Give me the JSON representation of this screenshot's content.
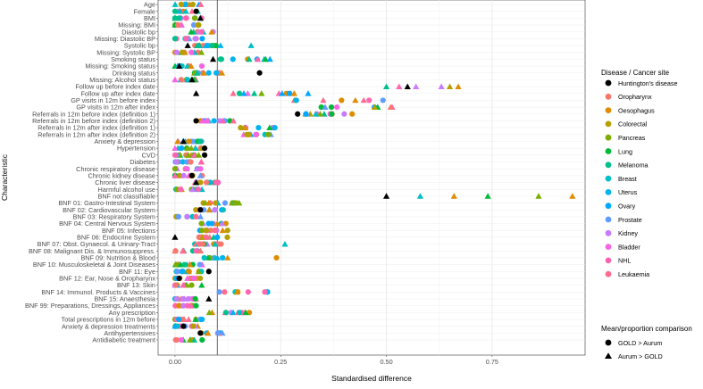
{
  "chart_data": {
    "type": "scatter",
    "xlabel": "Standardised difference",
    "ylabel": "Characteristic",
    "xlim": [
      -0.04,
      0.97
    ],
    "xticks": [
      0.0,
      0.25,
      0.5,
      0.75
    ],
    "xtick_labels": [
      "0.00",
      "0.25",
      "0.50",
      "0.75"
    ],
    "reference_line_x": 0.1,
    "grid": true,
    "legend_position": "right",
    "characteristics": [
      "Age",
      "Female",
      "BMI",
      "Missing: BMI",
      "Diastolic bp",
      "Missing: Diastolic BP",
      "Systolic bp",
      "Missing: Systolic BP",
      "Smoking status",
      "Missing: Smoking status",
      "Drinking status",
      "Missing: Alcohol status",
      "Follow up before index date",
      "Follow up after index date",
      "GP visits in 12m before index",
      "GP visits in 12m after index",
      "Referrals in 12m before index (definition 1)",
      "Referrals in 12m before index (definition 2)",
      "Referrals in 12m after index (definition 1)",
      "Referrals in 12m after index (definition 2)",
      "Anxiety & depression",
      "Hypertension",
      "CVD",
      "Diabetes",
      "Chronic respiratory disease",
      "Chronic kidney disease",
      "Chronic liver disease",
      "Harmful alcohol use",
      "BNF not classifiable",
      "BNF 01: Gastro-Intestinal System",
      "BNF 02: Cardiovascular System",
      "BNF 03: Respiratory System",
      "BNF 04: Central Nervous System",
      "BNF 05: Infections",
      "BNF 06: Endocrine System",
      "BNF 07: Obst. Gynaecol. & Urinary-Tract",
      "BNF 08: Malignant Dis. & Immunosuppress.",
      "BNF 09: Nutrition & Blood",
      "BNF 10: Musculoskeletal & Joint Diseases",
      "BNF 11: Eye",
      "BNF 12: Ear, Nose & Oropharynx",
      "BNF 13: Skin",
      "BNF 14: Immunol. Products & Vaccines",
      "BNF 15: Anaesthesia",
      "BNF 99: Preparations, Dressings, Appliances",
      "Any prescription",
      "Total prescriptions in 12m before",
      "Anxiety & depression treatments",
      "Antihypertensives",
      "Antidiabetic treatment"
    ],
    "legend_color": {
      "title": "Disease / Cancer site",
      "entries": [
        {
          "name": "Huntington's disease",
          "color": "#000000"
        },
        {
          "name": "Oropharynx",
          "color": "#F8766D"
        },
        {
          "name": "Oesophagus",
          "color": "#DE8C00"
        },
        {
          "name": "Colorectal",
          "color": "#B79F00"
        },
        {
          "name": "Pancreas",
          "color": "#7CAE00"
        },
        {
          "name": "Lung",
          "color": "#00BA38"
        },
        {
          "name": "Melanoma",
          "color": "#00C08B"
        },
        {
          "name": "Breast",
          "color": "#00BFC4"
        },
        {
          "name": "Uterus",
          "color": "#00B4F0"
        },
        {
          "name": "Ovary",
          "color": "#00A9FF"
        },
        {
          "name": "Prostate",
          "color": "#619CFF"
        },
        {
          "name": "Kidney",
          "color": "#C77CFF"
        },
        {
          "name": "Bladder",
          "color": "#F564E3"
        },
        {
          "name": "NHL",
          "color": "#FF64B0"
        },
        {
          "name": "Leukaemia",
          "color": "#FF6C91"
        }
      ]
    },
    "legend_shape": {
      "title": "Mean/proportion comparison",
      "entries": [
        {
          "name": "GOLD > Aurum",
          "shape": "circle"
        },
        {
          "name": "Aurum > GOLD",
          "shape": "triangle"
        }
      ]
    },
    "series": [
      {
        "group": "Huntington's disease",
        "color": "#000000",
        "points": [
          {
            "characteristic": "Female",
            "value": 0.05,
            "shape": "circle"
          },
          {
            "characteristic": "BMI",
            "value": 0.06,
            "shape": "triangle"
          },
          {
            "characteristic": "Systolic bp",
            "value": 0.03,
            "shape": "triangle"
          },
          {
            "characteristic": "Smoking status",
            "value": 0.09,
            "shape": "triangle"
          },
          {
            "characteristic": "Missing: Smoking status",
            "value": 0.01,
            "shape": "triangle"
          },
          {
            "characteristic": "Drinking status",
            "value": 0.2,
            "shape": "circle"
          },
          {
            "characteristic": "Missing: Alcohol status",
            "value": 0.04,
            "shape": "triangle"
          },
          {
            "characteristic": "Follow up before index date",
            "value": 0.55,
            "shape": "triangle"
          },
          {
            "characteristic": "Follow up after index date",
            "value": 0.05,
            "shape": "triangle"
          },
          {
            "characteristic": "Referrals in 12m before index (definition 1)",
            "value": 0.29,
            "shape": "circle"
          },
          {
            "characteristic": "Referrals in 12m before index (definition 2)",
            "value": 0.05,
            "shape": "circle"
          },
          {
            "characteristic": "Anxiety & depression",
            "value": 0.02,
            "shape": "triangle"
          },
          {
            "characteristic": "Hypertension",
            "value": 0.07,
            "shape": "circle"
          },
          {
            "characteristic": "CVD",
            "value": 0.07,
            "shape": "circle"
          },
          {
            "characteristic": "Chronic kidney disease",
            "value": 0.04,
            "shape": "circle"
          },
          {
            "characteristic": "Chronic liver disease",
            "value": 0.05,
            "shape": "triangle"
          },
          {
            "characteristic": "BNF not classifiable",
            "value": 0.5,
            "shape": "triangle"
          },
          {
            "characteristic": "BNF 02: Cardiovascular System",
            "value": 0.06,
            "shape": "circle"
          },
          {
            "characteristic": "BNF 06: Endocrine System",
            "value": 0.0,
            "shape": "triangle"
          },
          {
            "characteristic": "BNF 11: Eye",
            "value": 0.08,
            "shape": "circle"
          },
          {
            "characteristic": "BNF 12: Ear, Nose & Oropharynx",
            "value": 0.01,
            "shape": "circle"
          },
          {
            "characteristic": "BNF 15: Anaesthesia",
            "value": 0.08,
            "shape": "triangle"
          },
          {
            "characteristic": "Antihypertensives",
            "value": 0.06,
            "shape": "circle"
          },
          {
            "characteristic": "Anxiety & depression treatments",
            "value": 0.02,
            "shape": "circle"
          }
        ]
      },
      {
        "group": "Cancer sites",
        "color": "mixed",
        "points": [
          {
            "characteristic": "Follow up before index date",
            "value": 0.5,
            "shape": "triangle",
            "color": "#00C08B"
          },
          {
            "characteristic": "Follow up before index date",
            "value": 0.53,
            "shape": "triangle",
            "color": "#FF64B0"
          },
          {
            "characteristic": "Follow up before index date",
            "value": 0.57,
            "shape": "triangle",
            "color": "#C77CFF"
          },
          {
            "characteristic": "Follow up before index date",
            "value": 0.63,
            "shape": "triangle",
            "color": "#C77CFF"
          },
          {
            "characteristic": "Follow up before index date",
            "value": 0.65,
            "shape": "triangle",
            "color": "#B79F00"
          },
          {
            "characteristic": "Follow up before index date",
            "value": 0.67,
            "shape": "triangle",
            "color": "#DE8C00"
          },
          {
            "characteristic": "BNF not classifiable",
            "value": 0.58,
            "shape": "triangle",
            "color": "#00BFC4"
          },
          {
            "characteristic": "BNF not classifiable",
            "value": 0.66,
            "shape": "triangle",
            "color": "#DE8C00"
          },
          {
            "characteristic": "BNF not classifiable",
            "value": 0.74,
            "shape": "triangle",
            "color": "#00BA38"
          },
          {
            "characteristic": "BNF not classifiable",
            "value": 0.86,
            "shape": "triangle",
            "color": "#7CAE00"
          },
          {
            "characteristic": "BNF not classifiable",
            "value": 0.94,
            "shape": "triangle",
            "color": "#DE8C00"
          },
          {
            "characteristic": "BNF 09: Nutrition & Blood",
            "value": 0.24,
            "shape": "circle",
            "color": "#DE8C00"
          },
          {
            "characteristic": "BNF 07: Obst. Gynaecol. & Urinary-Tract",
            "value": 0.26,
            "shape": "triangle",
            "color": "#00BFC4"
          },
          {
            "characteristic": "Systolic bp",
            "value": 0.18,
            "shape": "triangle",
            "color": "#00BFC4"
          }
        ]
      }
    ]
  }
}
